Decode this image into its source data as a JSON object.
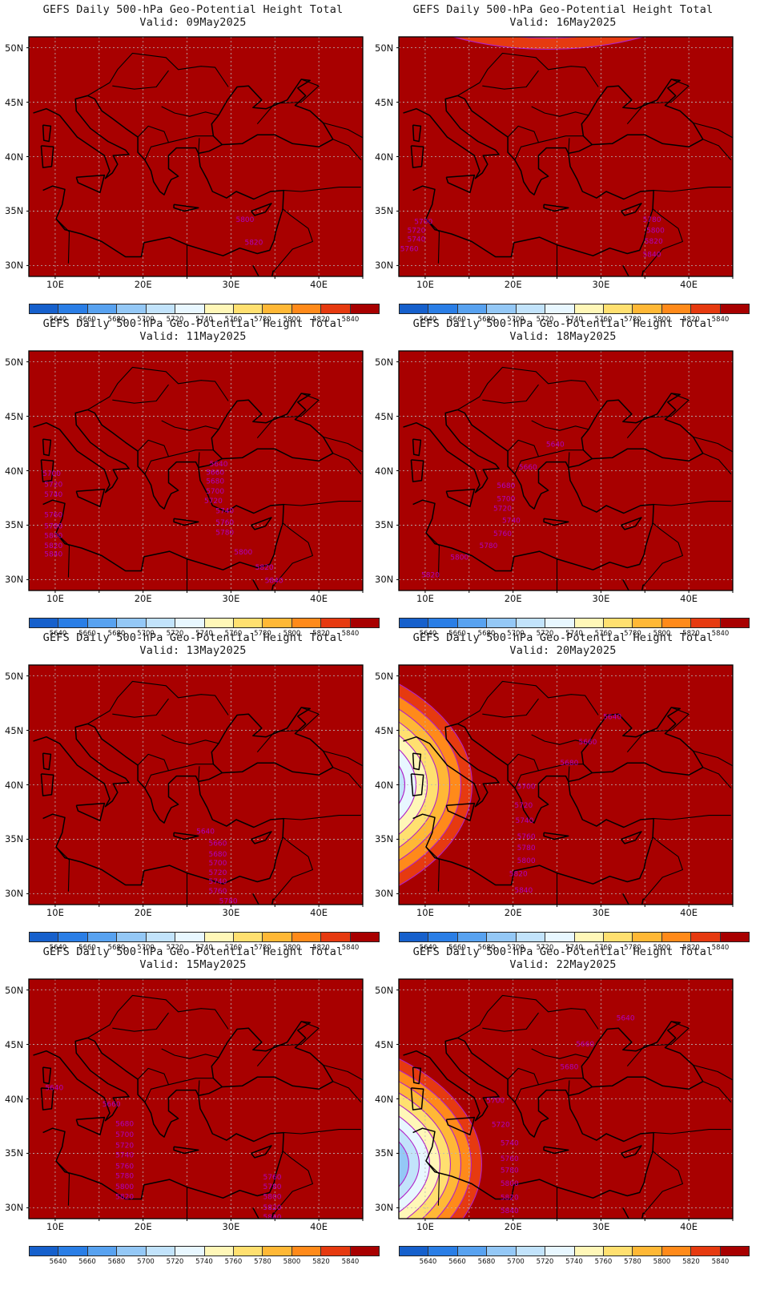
{
  "figure": {
    "title_prefix": "GEFS Daily 500-hPa Geo-Potential Height Total",
    "valid_prefix": "Valid:",
    "lat_labels": [
      "50N",
      "45N",
      "40N",
      "35N",
      "30N"
    ],
    "lon_labels": [
      "10E",
      "20E",
      "30E",
      "40E"
    ]
  },
  "colorbar": {
    "levels": [
      5640,
      5660,
      5680,
      5700,
      5720,
      5740,
      5760,
      5780,
      5800,
      5820,
      5840
    ],
    "colors": [
      "#1660cc",
      "#2a7ee6",
      "#58a2f0",
      "#94c8f6",
      "#c2e3fb",
      "#e8f7ff",
      "#fff7b8",
      "#ffe070",
      "#ffb836",
      "#ff8a1a",
      "#e63a10",
      "#a80000"
    ]
  },
  "colors": {
    "contour": "#b020c8",
    "contour_label": "#b000c0",
    "coastline": "#000000",
    "gridline": "#b8b8b8"
  },
  "chart_data": {
    "type": "heatmap",
    "description_field": "500-hPa geopotential height (m), contoured every 20 m",
    "lat_range": [
      29,
      51
    ],
    "lon_range": [
      7,
      45
    ],
    "panels": [
      {
        "valid": "09May2025",
        "contour_labels": [
          {
            "text": "5800",
            "lon": 31.6,
            "lat": 34.2
          },
          {
            "text": "5820",
            "lon": 32.6,
            "lat": 32.1
          }
        ]
      },
      {
        "valid": "16May2025",
        "contour_labels": [
          {
            "text": "5700",
            "lon": 9.8,
            "lat": 34.0
          },
          {
            "text": "5720",
            "lon": 9.0,
            "lat": 33.2
          },
          {
            "text": "5740",
            "lon": 9.0,
            "lat": 32.4
          },
          {
            "text": "5760",
            "lon": 8.2,
            "lat": 31.5
          },
          {
            "text": "5780",
            "lon": 35.8,
            "lat": 34.2
          },
          {
            "text": "5800",
            "lon": 36.2,
            "lat": 33.2
          },
          {
            "text": "5820",
            "lon": 36.0,
            "lat": 32.2
          },
          {
            "text": "5840",
            "lon": 35.8,
            "lat": 31.0
          }
        ]
      },
      {
        "valid": "11May2025",
        "contour_labels": [
          {
            "text": "5640",
            "lon": 28.6,
            "lat": 40.6
          },
          {
            "text": "5660",
            "lon": 28.2,
            "lat": 39.8
          },
          {
            "text": "5680",
            "lon": 28.2,
            "lat": 39.0
          },
          {
            "text": "5700",
            "lon": 28.2,
            "lat": 38.1
          },
          {
            "text": "5720",
            "lon": 28.0,
            "lat": 37.2
          },
          {
            "text": "5740",
            "lon": 29.3,
            "lat": 36.3
          },
          {
            "text": "5760",
            "lon": 29.3,
            "lat": 35.2
          },
          {
            "text": "5780",
            "lon": 29.3,
            "lat": 34.3
          },
          {
            "text": "5800",
            "lon": 31.4,
            "lat": 32.5
          },
          {
            "text": "5820",
            "lon": 33.8,
            "lat": 31.1
          },
          {
            "text": "5840",
            "lon": 34.9,
            "lat": 29.9
          },
          {
            "text": "5700",
            "lon": 9.6,
            "lat": 39.7
          },
          {
            "text": "5720",
            "lon": 9.8,
            "lat": 38.7
          },
          {
            "text": "5740",
            "lon": 9.8,
            "lat": 37.8
          },
          {
            "text": "5760",
            "lon": 9.8,
            "lat": 35.9
          },
          {
            "text": "5780",
            "lon": 9.8,
            "lat": 34.9
          },
          {
            "text": "5800",
            "lon": 9.8,
            "lat": 34.0
          },
          {
            "text": "5820",
            "lon": 9.8,
            "lat": 33.1
          },
          {
            "text": "5840",
            "lon": 9.8,
            "lat": 32.3
          }
        ]
      },
      {
        "valid": "18May2025",
        "contour_labels": [
          {
            "text": "5640",
            "lon": 24.8,
            "lat": 42.4
          },
          {
            "text": "5660",
            "lon": 21.7,
            "lat": 40.3
          },
          {
            "text": "5680",
            "lon": 19.2,
            "lat": 38.6
          },
          {
            "text": "5700",
            "lon": 19.2,
            "lat": 37.4
          },
          {
            "text": "5720",
            "lon": 18.8,
            "lat": 36.5
          },
          {
            "text": "5740",
            "lon": 19.8,
            "lat": 35.4
          },
          {
            "text": "5760",
            "lon": 18.8,
            "lat": 34.2
          },
          {
            "text": "5780",
            "lon": 17.2,
            "lat": 33.1
          },
          {
            "text": "5800",
            "lon": 13.9,
            "lat": 32.0
          },
          {
            "text": "5820",
            "lon": 10.6,
            "lat": 30.4
          }
        ]
      },
      {
        "valid": "13May2025",
        "contour_labels": [
          {
            "text": "5640",
            "lon": 27.1,
            "lat": 35.7
          },
          {
            "text": "5660",
            "lon": 28.5,
            "lat": 34.6
          },
          {
            "text": "5680",
            "lon": 28.5,
            "lat": 33.6
          },
          {
            "text": "5700",
            "lon": 28.5,
            "lat": 32.8
          },
          {
            "text": "5720",
            "lon": 28.5,
            "lat": 31.9
          },
          {
            "text": "5740",
            "lon": 28.5,
            "lat": 31.1
          },
          {
            "text": "5760",
            "lon": 28.5,
            "lat": 30.2
          },
          {
            "text": "5780",
            "lon": 29.7,
            "lat": 29.3
          }
        ]
      },
      {
        "valid": "20May2025",
        "contour_labels": [
          {
            "text": "5640",
            "lon": 31.3,
            "lat": 46.2
          },
          {
            "text": "5660",
            "lon": 28.5,
            "lat": 43.9
          },
          {
            "text": "5680",
            "lon": 26.4,
            "lat": 42.0
          },
          {
            "text": "5700",
            "lon": 21.5,
            "lat": 39.8
          },
          {
            "text": "5720",
            "lon": 21.2,
            "lat": 38.1
          },
          {
            "text": "5740",
            "lon": 21.3,
            "lat": 36.7
          },
          {
            "text": "5760",
            "lon": 21.5,
            "lat": 35.2
          },
          {
            "text": "5780",
            "lon": 21.5,
            "lat": 34.2
          },
          {
            "text": "5800",
            "lon": 21.5,
            "lat": 33.0
          },
          {
            "text": "5820",
            "lon": 20.6,
            "lat": 31.8
          },
          {
            "text": "5840",
            "lon": 21.2,
            "lat": 30.3
          }
        ]
      },
      {
        "valid": "15May2025",
        "contour_labels": [
          {
            "text": "5640",
            "lon": 9.9,
            "lat": 41.0
          },
          {
            "text": "5660",
            "lon": 16.4,
            "lat": 39.5
          },
          {
            "text": "5680",
            "lon": 17.9,
            "lat": 37.7
          },
          {
            "text": "5700",
            "lon": 17.9,
            "lat": 36.7
          },
          {
            "text": "5720",
            "lon": 17.9,
            "lat": 35.7
          },
          {
            "text": "5740",
            "lon": 17.9,
            "lat": 34.8
          },
          {
            "text": "5760",
            "lon": 17.9,
            "lat": 33.8
          },
          {
            "text": "5780",
            "lon": 17.9,
            "lat": 32.9
          },
          {
            "text": "5800",
            "lon": 17.9,
            "lat": 31.9
          },
          {
            "text": "5820",
            "lon": 17.9,
            "lat": 31.0
          },
          {
            "text": "5760",
            "lon": 34.7,
            "lat": 32.8
          },
          {
            "text": "5780",
            "lon": 34.7,
            "lat": 31.9
          },
          {
            "text": "5800",
            "lon": 34.7,
            "lat": 31.0
          },
          {
            "text": "5820",
            "lon": 34.7,
            "lat": 30.0
          },
          {
            "text": "5840",
            "lon": 34.7,
            "lat": 29.1
          }
        ]
      },
      {
        "valid": "22May2025",
        "contour_labels": [
          {
            "text": "5640",
            "lon": 32.8,
            "lat": 47.4
          },
          {
            "text": "5660",
            "lon": 28.2,
            "lat": 45.0
          },
          {
            "text": "5680",
            "lon": 26.4,
            "lat": 42.9
          },
          {
            "text": "5700",
            "lon": 18.0,
            "lat": 39.8
          },
          {
            "text": "5720",
            "lon": 18.6,
            "lat": 37.6
          },
          {
            "text": "5740",
            "lon": 19.6,
            "lat": 35.9
          },
          {
            "text": "5760",
            "lon": 19.6,
            "lat": 34.5
          },
          {
            "text": "5780",
            "lon": 19.6,
            "lat": 33.4
          },
          {
            "text": "5800",
            "lon": 19.6,
            "lat": 32.2
          },
          {
            "text": "5820",
            "lon": 19.6,
            "lat": 30.9
          },
          {
            "text": "5840",
            "lon": 19.6,
            "lat": 29.7
          }
        ]
      }
    ]
  }
}
